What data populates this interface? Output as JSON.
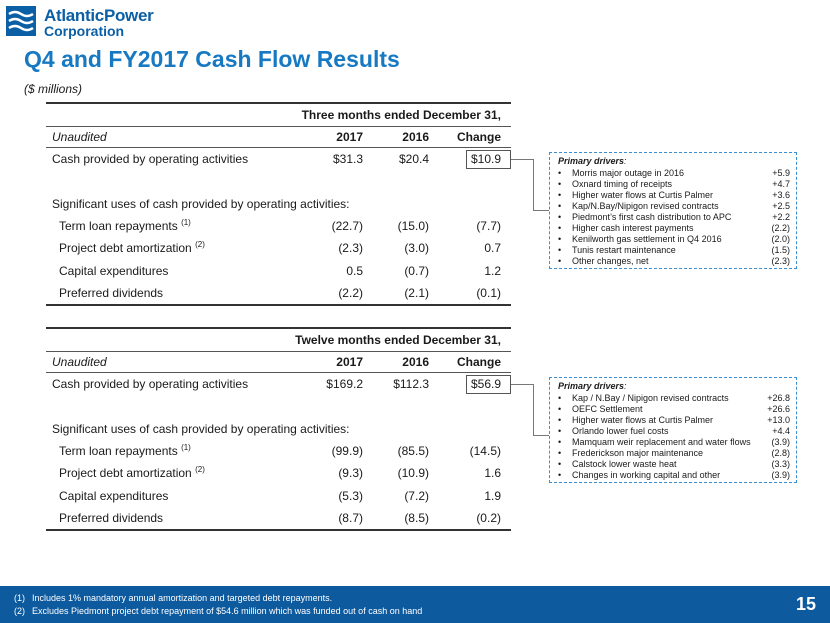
{
  "header": {
    "logo_line1": "AtlanticPower",
    "logo_line2": "Corporation",
    "title": "Q4 and FY2017 Cash Flow Results",
    "subtitle": "($ millions)"
  },
  "quarter_table": {
    "period": "Three months ended December 31,",
    "col_label": "Unaudited",
    "col_2017": "2017",
    "col_2016": "2016",
    "col_change": "Change",
    "operating": {
      "label": "Cash provided by operating activities",
      "v2017": "$31.3",
      "v2016": "$20.4",
      "change": "$10.9"
    },
    "uses_label": "Significant uses of cash provided by operating activities:",
    "rows": [
      {
        "label": "Term loan repayments",
        "note": "(1)",
        "v2017": "(22.7)",
        "v2016": "(15.0)",
        "change": "(7.7)"
      },
      {
        "label": "Project debt amortization",
        "note": "(2)",
        "v2017": "(2.3)",
        "v2016": "(3.0)",
        "change": "0.7"
      },
      {
        "label": "Capital expenditures",
        "note": "",
        "v2017": "0.5",
        "v2016": "(0.7)",
        "change": "1.2"
      },
      {
        "label": "Preferred dividends",
        "note": "",
        "v2017": "(2.2)",
        "v2016": "(2.1)",
        "change": "(0.1)"
      }
    ]
  },
  "year_table": {
    "period": "Twelve months ended December 31,",
    "col_label": "Unaudited",
    "col_2017": "2017",
    "col_2016": "2016",
    "col_change": "Change",
    "operating": {
      "label": "Cash provided by operating activities",
      "v2017": "$169.2",
      "v2016": "$112.3",
      "change": "$56.9"
    },
    "uses_label": "Significant uses of cash provided by operating activities:",
    "rows": [
      {
        "label": "Term loan repayments",
        "note": "(1)",
        "v2017": "(99.9)",
        "v2016": "(85.5)",
        "change": "(14.5)"
      },
      {
        "label": "Project debt amortization",
        "note": "(2)",
        "v2017": "(9.3)",
        "v2016": "(10.9)",
        "change": "1.6"
      },
      {
        "label": "Capital expenditures",
        "note": "",
        "v2017": "(5.3)",
        "v2016": "(7.2)",
        "change": "1.9"
      },
      {
        "label": "Preferred dividends",
        "note": "",
        "v2017": "(8.7)",
        "v2016": "(8.5)",
        "change": "(0.2)"
      }
    ]
  },
  "quarter_drivers": {
    "heading": "Primary drivers",
    "heading_colon": ":",
    "bullet": "•",
    "items": [
      {
        "label": "Morris major outage in 2016",
        "value": "+5.9"
      },
      {
        "label": "Oxnard timing of receipts",
        "value": "+4.7"
      },
      {
        "label": "Higher water flows at Curtis Palmer",
        "value": "+3.6"
      },
      {
        "label": "Kap/N.Bay/Nipigon revised contracts",
        "value": "+2.5"
      },
      {
        "label": "Piedmont’s first cash distribution to APC",
        "value": "+2.2"
      },
      {
        "label": "Higher cash interest payments",
        "value": "(2.2)"
      },
      {
        "label": "Kenilworth gas settlement in Q4 2016",
        "value": "(2.0)"
      },
      {
        "label": "Tunis restart maintenance",
        "value": "(1.5)"
      },
      {
        "label": "Other changes, net",
        "value": "(2.3)"
      }
    ]
  },
  "year_drivers": {
    "heading": "Primary drivers",
    "heading_colon": ":",
    "bullet": "•",
    "items": [
      {
        "label": "Kap / N.Bay / Nipigon revised contracts",
        "value": "+26.8"
      },
      {
        "label": "OEFC Settlement",
        "value": "+26.6"
      },
      {
        "label": "Higher water flows at Curtis Palmer",
        "value": "+13.0"
      },
      {
        "label": "Orlando lower fuel costs",
        "value": "+4.4"
      },
      {
        "label": "Mamquam weir replacement and water flows",
        "value": "(3.9)"
      },
      {
        "label": "Frederickson major maintenance",
        "value": "(2.8)"
      },
      {
        "label": "Calstock lower waste heat",
        "value": "(3.3)"
      },
      {
        "label": "Changes in working capital and other",
        "value": "(3.9)"
      }
    ]
  },
  "footer": {
    "notes": [
      {
        "num": "(1)",
        "text": "Includes 1% mandatory annual amortization and targeted debt repayments."
      },
      {
        "num": "(2)",
        "text": "Excludes Piedmont project debt repayment of $54.6 million which was funded out of cash on hand"
      }
    ],
    "page_number": "15"
  },
  "colors": {
    "brand_blue": "#1779c2",
    "footer_blue": "#0d5a9f",
    "dashed_border": "#3b8fd0"
  }
}
